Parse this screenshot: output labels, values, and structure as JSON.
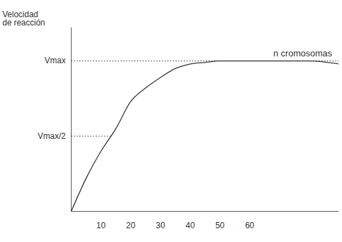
{
  "chart_data": {
    "type": "line",
    "y_label": "Velocidad\nde reacción",
    "annotations": [
      "n cromosomas"
    ],
    "x": [
      0,
      5,
      10,
      15,
      20,
      25,
      30,
      35,
      40,
      45,
      50,
      55,
      60,
      70,
      80,
      90
    ],
    "values": [
      0,
      0.22,
      0.4,
      0.55,
      0.73,
      0.82,
      0.89,
      0.95,
      0.98,
      0.99,
      1.0,
      1.0,
      1.0,
      1.0,
      1.0,
      0.98
    ],
    "color": "#333333",
    "xlim": [
      0,
      90
    ],
    "xticks": [
      10,
      20,
      30,
      40,
      50,
      60
    ],
    "ylim": [
      0,
      1.22
    ],
    "yticks": [
      {
        "value": 0.5,
        "label": "Vmax/2"
      },
      {
        "value": 1,
        "label": "Vmax"
      }
    ],
    "grid": true
  }
}
